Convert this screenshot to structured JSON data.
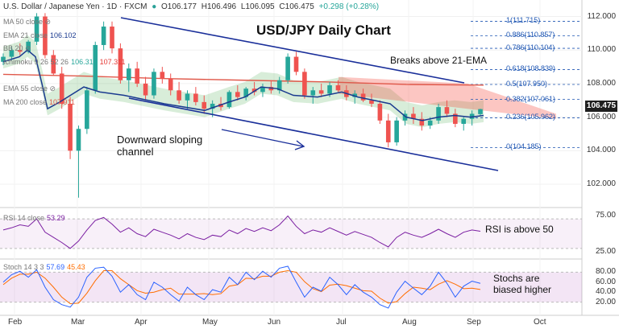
{
  "header": {
    "symbol": "U.S. Dollar / Japanese Yen · 1D · FXCM",
    "open": "O106.177",
    "high": "H106.496",
    "low": "L106.095",
    "close": "C106.475",
    "change": "+0.298 (+0.28%)"
  },
  "indicators": {
    "ma50": {
      "label": "MA 50 close",
      "value": ""
    },
    "ema21": {
      "label": "EMA 21 close",
      "value": "106.102"
    },
    "bb": {
      "label": "BB 20",
      "value": ""
    },
    "ichimoku": {
      "label": "Ichimoku 9 26 52 26",
      "value1": "106.314",
      "value2": "107.311"
    },
    "ema55": {
      "label": "EMA 55 close",
      "value": ""
    },
    "ma200": {
      "label": "MA 200 close",
      "value": "107.911"
    },
    "rsi": {
      "label": "RSI 14 close",
      "value": "53.29"
    },
    "stoch": {
      "label": "Stoch 14 3 3",
      "value1": "57.69",
      "value2": "45.43"
    }
  },
  "annotations": {
    "title": "USD/JPY Daily Chart",
    "breaks": "Breaks above 21-EMA",
    "channel_line1": "Downward sloping",
    "channel_line2": "channel",
    "rsi_note": "RSI is above 50",
    "stoch_line1": "Stochs are",
    "stoch_line2": "biased higher"
  },
  "fib_levels": [
    {
      "label": "1(111.715)",
      "value": 111.715
    },
    {
      "label": "0.886(110.857)",
      "value": 110.857
    },
    {
      "label": "0.786(110.104)",
      "value": 110.104
    },
    {
      "label": "0.618(108.839)",
      "value": 108.839
    },
    {
      "label": "0.5(107.950)",
      "value": 107.95
    },
    {
      "label": "0.382(107.061)",
      "value": 107.061
    },
    {
      "label": "0.236(105.962)",
      "value": 105.962
    },
    {
      "label": "0(104.185)",
      "value": 104.185
    }
  ],
  "last_price": "106.475",
  "colors": {
    "up": "#26a69a",
    "down": "#ef5350",
    "ema21": "#1a3a8f",
    "ma200": "#e0584a",
    "channel": "#1a2f9a",
    "fib": "#1e56b3",
    "rsi": "#7b1fa2",
    "stoch_k": "#2962ff",
    "stoch_d": "#ff6d00"
  },
  "chart_data": {
    "type": "candlestick",
    "title": "USD/JPY Daily Chart",
    "y_ticks": [
      102,
      104,
      106,
      108,
      110,
      112
    ],
    "ylim": [
      100.9,
      112.6
    ],
    "x_ticks": [
      "Feb",
      "Mar",
      "Apr",
      "May",
      "Jun",
      "Jul",
      "Aug",
      "Sep",
      "Oct"
    ],
    "series": [
      {
        "name": "EMA 21",
        "x": [
          0,
          20,
          30,
          40,
          48,
          55,
          70,
          100,
          120,
          150,
          200,
          250,
          280,
          300,
          320,
          340,
          360,
          390,
          420,
          440,
          460,
          480,
          500,
          520,
          540,
          560,
          580,
          596
        ],
        "y": [
          109.3,
          109.6,
          110.0,
          109.6,
          108.0,
          106.5,
          106.9,
          107.8,
          107.5,
          107.3,
          106.8,
          106.4,
          106.9,
          107.2,
          107.8,
          107.7,
          107.3,
          107.2,
          107.5,
          107.2,
          107.0,
          106.8,
          106.0,
          105.8,
          106.0,
          106.1,
          106.0,
          106.1
        ]
      },
      {
        "name": "MA 200",
        "x": [
          0,
          100,
          200,
          300,
          400,
          500,
          596
        ],
        "y": [
          108.55,
          108.45,
          108.3,
          108.2,
          108.1,
          107.95,
          107.91
        ]
      }
    ],
    "candles": [
      [
        109.3,
        109.8,
        109.1,
        109.6
      ],
      [
        109.6,
        110.2,
        109.4,
        110.0
      ],
      [
        110.0,
        110.4,
        109.7,
        109.9
      ],
      [
        109.9,
        110.6,
        109.8,
        110.5
      ],
      [
        110.5,
        112.2,
        110.3,
        112.0
      ],
      [
        112.0,
        112.2,
        109.5,
        109.7
      ],
      [
        109.7,
        110.0,
        108.5,
        108.6
      ],
      [
        108.6,
        109.0,
        106.5,
        106.8
      ],
      [
        106.8,
        107.2,
        103.5,
        104.0
      ],
      [
        104.0,
        105.5,
        101.2,
        105.3
      ],
      [
        105.3,
        107.8,
        105.0,
        107.6
      ],
      [
        107.6,
        110.5,
        107.4,
        110.3
      ],
      [
        110.3,
        111.7,
        110.0,
        111.4
      ],
      [
        111.4,
        111.7,
        109.8,
        110.1
      ],
      [
        110.1,
        110.4,
        108.0,
        108.2
      ],
      [
        108.2,
        109.2,
        107.5,
        108.9
      ],
      [
        108.9,
        109.3,
        107.8,
        108.0
      ],
      [
        108.0,
        108.4,
        107.0,
        107.3
      ],
      [
        107.3,
        108.9,
        107.1,
        108.7
      ],
      [
        108.7,
        109.0,
        108.0,
        108.3
      ],
      [
        108.3,
        108.6,
        107.3,
        107.6
      ],
      [
        107.6,
        108.1,
        106.8,
        107.0
      ],
      [
        107.0,
        107.6,
        106.5,
        107.4
      ],
      [
        107.4,
        107.8,
        106.7,
        106.9
      ],
      [
        106.9,
        107.3,
        106.2,
        106.5
      ],
      [
        106.5,
        107.0,
        106.0,
        106.8
      ],
      [
        106.8,
        107.2,
        106.4,
        106.6
      ],
      [
        106.6,
        107.6,
        106.5,
        107.5
      ],
      [
        107.5,
        107.9,
        107.0,
        107.2
      ],
      [
        107.2,
        107.8,
        107.0,
        107.7
      ],
      [
        107.7,
        108.1,
        107.3,
        107.5
      ],
      [
        107.5,
        108.0,
        107.2,
        107.8
      ],
      [
        107.8,
        108.2,
        107.4,
        107.6
      ],
      [
        107.6,
        108.4,
        107.4,
        108.2
      ],
      [
        108.2,
        109.8,
        108.0,
        109.6
      ],
      [
        109.6,
        109.9,
        108.5,
        108.7
      ],
      [
        108.7,
        108.9,
        107.1,
        107.3
      ],
      [
        107.3,
        107.8,
        106.8,
        107.6
      ],
      [
        107.6,
        108.0,
        107.2,
        107.4
      ],
      [
        107.4,
        108.1,
        107.2,
        107.9
      ],
      [
        107.9,
        108.2,
        107.5,
        107.6
      ],
      [
        107.6,
        107.9,
        107.0,
        107.2
      ],
      [
        107.2,
        107.6,
        106.8,
        107.4
      ],
      [
        107.4,
        107.7,
        106.9,
        107.0
      ],
      [
        107.0,
        107.4,
        106.6,
        106.8
      ],
      [
        106.8,
        107.0,
        105.6,
        105.8
      ],
      [
        105.8,
        106.2,
        104.2,
        104.5
      ],
      [
        104.5,
        106.0,
        104.3,
        105.8
      ],
      [
        105.8,
        106.4,
        105.5,
        106.2
      ],
      [
        106.2,
        106.6,
        105.6,
        105.9
      ],
      [
        105.9,
        106.3,
        105.2,
        105.5
      ],
      [
        105.5,
        106.0,
        105.3,
        105.8
      ],
      [
        105.8,
        106.8,
        105.6,
        106.6
      ],
      [
        106.6,
        107.0,
        106.0,
        106.2
      ],
      [
        106.2,
        106.5,
        105.4,
        105.6
      ],
      [
        105.6,
        106.0,
        105.2,
        105.9
      ],
      [
        105.9,
        106.4,
        105.5,
        106.2
      ],
      [
        106.18,
        106.5,
        106.1,
        106.48
      ]
    ],
    "rsi": {
      "ylim": [
        20,
        80
      ],
      "ticks": [
        25,
        75
      ],
      "levels": [
        30,
        70
      ],
      "values": [
        55,
        58,
        62,
        60,
        70,
        52,
        45,
        38,
        30,
        40,
        55,
        68,
        72,
        63,
        52,
        58,
        50,
        46,
        56,
        52,
        48,
        43,
        50,
        45,
        42,
        48,
        46,
        55,
        50,
        57,
        53,
        58,
        54,
        62,
        74,
        60,
        50,
        55,
        52,
        58,
        53,
        48,
        53,
        49,
        45,
        38,
        32,
        45,
        52,
        48,
        45,
        50,
        56,
        50,
        45,
        52,
        55,
        53.29
      ]
    },
    "stoch": {
      "ylim": [
        0,
        100
      ],
      "ticks": [
        20,
        40,
        60,
        80
      ],
      "levels": [
        20,
        80
      ],
      "k": [
        60,
        75,
        82,
        70,
        85,
        50,
        25,
        15,
        10,
        30,
        70,
        88,
        90,
        72,
        40,
        55,
        35,
        25,
        60,
        50,
        35,
        22,
        50,
        35,
        25,
        45,
        40,
        70,
        55,
        80,
        65,
        82,
        70,
        88,
        92,
        60,
        30,
        50,
        42,
        70,
        55,
        35,
        55,
        40,
        30,
        15,
        8,
        40,
        62,
        48,
        35,
        52,
        80,
        58,
        30,
        52,
        62,
        57.69
      ],
      "d": [
        55,
        68,
        76,
        76,
        80,
        68,
        50,
        30,
        17,
        18,
        38,
        63,
        83,
        83,
        67,
        55,
        43,
        38,
        40,
        45,
        48,
        36,
        36,
        36,
        37,
        35,
        37,
        52,
        55,
        68,
        67,
        72,
        72,
        80,
        83,
        80,
        61,
        47,
        41,
        54,
        56,
        53,
        48,
        43,
        42,
        28,
        18,
        21,
        37,
        50,
        48,
        45,
        56,
        63,
        56,
        47,
        48,
        45.43
      ]
    }
  }
}
